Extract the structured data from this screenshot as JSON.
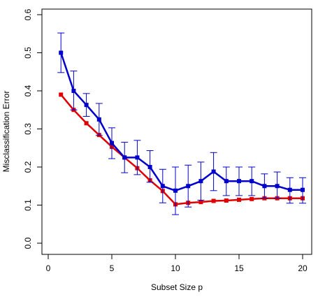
{
  "chart_data": {
    "type": "line",
    "xlabel": "Subset Size p",
    "ylabel": "Misclassification Error",
    "xlim": [
      0,
      20
    ],
    "ylim": [
      0,
      0.6
    ],
    "xticks": [
      0,
      5,
      10,
      15,
      20
    ],
    "yticks": [
      0.0,
      0.1,
      0.2,
      0.3,
      0.4,
      0.5,
      0.6
    ],
    "xtick_labels": [
      "0",
      "5",
      "10",
      "15",
      "20"
    ],
    "ytick_labels": [
      "0.0",
      "0.1",
      "0.2",
      "0.3",
      "0.4",
      "0.5",
      "0.6"
    ],
    "grid": false,
    "x": [
      1,
      2,
      3,
      4,
      5,
      6,
      7,
      8,
      9,
      10,
      11,
      12,
      13,
      14,
      15,
      16,
      17,
      18,
      19,
      20
    ],
    "series": [
      {
        "color": "#e00000",
        "values": [
          0.39,
          0.35,
          0.315,
          0.284,
          0.253,
          0.225,
          0.197,
          0.165,
          0.137,
          0.102,
          0.106,
          0.108,
          0.111,
          0.112,
          0.114,
          0.116,
          0.118,
          0.118,
          0.118,
          0.118
        ]
      },
      {
        "color": "#0000cc",
        "values": [
          0.5,
          0.4,
          0.363,
          0.325,
          0.263,
          0.225,
          0.225,
          0.2,
          0.15,
          0.138,
          0.15,
          0.163,
          0.188,
          0.163,
          0.163,
          0.163,
          0.15,
          0.15,
          0.14,
          0.14
        ],
        "error_low": [
          0.448,
          0.35,
          0.333,
          0.283,
          0.222,
          0.185,
          0.18,
          0.16,
          0.106,
          0.075,
          0.095,
          0.113,
          0.138,
          0.125,
          0.125,
          0.125,
          0.118,
          0.118,
          0.105,
          0.105
        ],
        "error_high": [
          0.552,
          0.452,
          0.393,
          0.367,
          0.303,
          0.265,
          0.27,
          0.243,
          0.194,
          0.2,
          0.205,
          0.213,
          0.238,
          0.2,
          0.2,
          0.2,
          0.182,
          0.187,
          0.172,
          0.172
        ]
      }
    ]
  }
}
